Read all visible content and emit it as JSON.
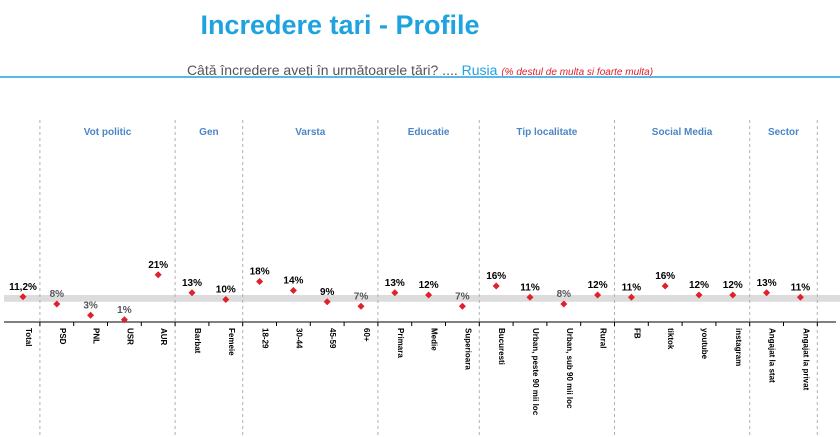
{
  "header": {
    "title": "Incredere tari - Profile",
    "question": "Câtă încredere aveți în următoarele țări? .... ",
    "country": "Rusia",
    "note": "(% destul  de multa si foarte multa)"
  },
  "colors": {
    "title": "#1fa3df",
    "group_label": "#4a86c8",
    "marker": "#e0202a",
    "below_band_text": "#555555",
    "above_band_text": "#000000",
    "band": "#dcdcdc"
  },
  "chart_data": {
    "type": "scatter",
    "title": "Incredere tari - Profile",
    "ylim": [
      0,
      25
    ],
    "band": [
      9,
      12
    ],
    "grid": false,
    "categories": [
      "Total",
      "PSD",
      "PNL",
      "USR",
      "AUR",
      "Barbat",
      "Femeie",
      "18-29",
      "30-44",
      "45-59",
      "60+",
      "Primara",
      "Medie",
      "Superioara",
      "Bucuresti",
      "Urban, peste 90 mii loc",
      "Urban, sub 90 mii loc",
      "Rural",
      "FB",
      "tiktok",
      "youtube",
      "instagram",
      "Angajat la stat",
      "Angajat la privat"
    ],
    "values": [
      11.2,
      8,
      3,
      1,
      21,
      13,
      10,
      18,
      14,
      9,
      7,
      13,
      12,
      7,
      16,
      11,
      8,
      12,
      11,
      16,
      12,
      12,
      13,
      11
    ],
    "labels": [
      "11,2%",
      "8%",
      "3%",
      "1%",
      "21%",
      "13%",
      "10%",
      "18%",
      "14%",
      "9%",
      "7%",
      "13%",
      "12%",
      "7%",
      "16%",
      "11%",
      "8%",
      "12%",
      "11%",
      "16%",
      "12%",
      "12%",
      "13%",
      "11%"
    ],
    "groups": [
      {
        "name": "Vot politic",
        "start": 1,
        "end": 4
      },
      {
        "name": "Gen",
        "start": 5,
        "end": 6
      },
      {
        "name": "Varsta",
        "start": 7,
        "end": 10
      },
      {
        "name": "Educatie",
        "start": 11,
        "end": 13
      },
      {
        "name": "Tip localitate",
        "start": 14,
        "end": 17
      },
      {
        "name": "Social Media",
        "start": 18,
        "end": 21
      },
      {
        "name": "Sector",
        "start": 22,
        "end": 23
      }
    ]
  }
}
